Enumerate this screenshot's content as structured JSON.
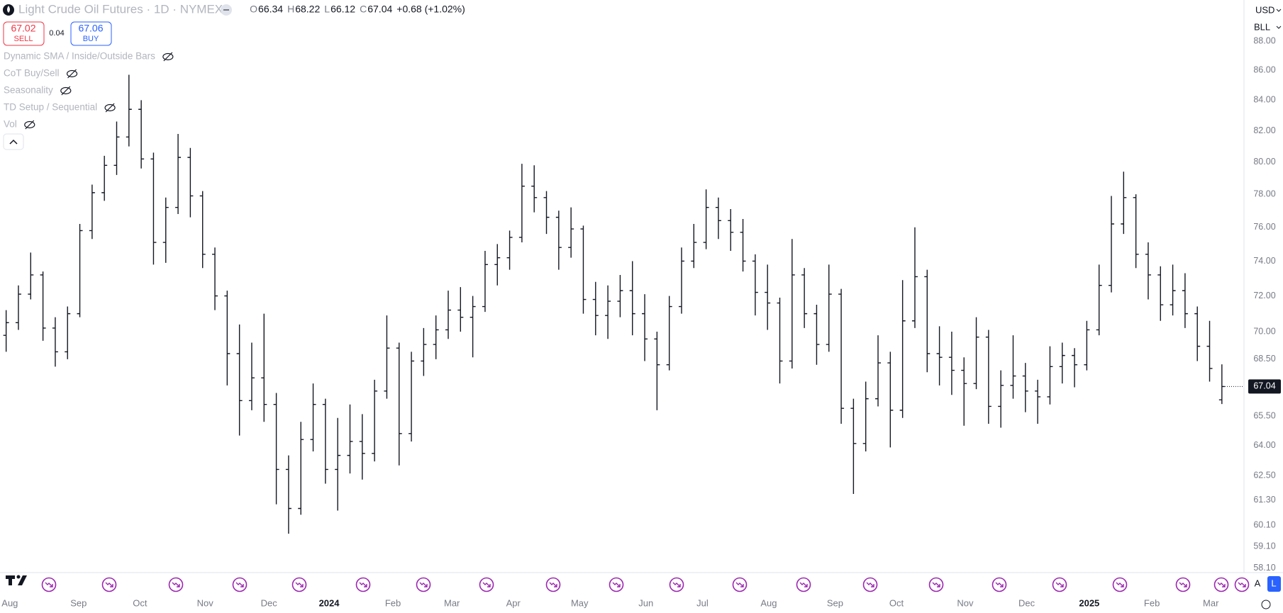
{
  "header": {
    "symbol": "Light Crude Oil Futures · 1D · NYMEX",
    "ohlc": [
      {
        "label": "O",
        "value": "66.34"
      },
      {
        "label": "H",
        "value": "68.22"
      },
      {
        "label": "L",
        "value": "66.12"
      },
      {
        "label": "C",
        "value": "67.04"
      }
    ],
    "change": "+0.68 (+1.02%)",
    "sell": {
      "price": "67.02",
      "label": "SELL"
    },
    "spread": "0.04",
    "buy": {
      "price": "67.06",
      "label": "BUY"
    }
  },
  "indicators": [
    "Dynamic SMA / Inside/Outside Bars",
    "CoT Buy/Sell",
    "Seasonality",
    "TD Setup / Sequential",
    "Vol"
  ],
  "price_axis": {
    "currency": "USD",
    "unit": "BLL"
  },
  "scale_modes": [
    "A",
    "L"
  ],
  "chart_data": {
    "type": "ohlc",
    "log_scale": true,
    "grid": false,
    "color": "#131722",
    "last_price": {
      "value": 67.04,
      "label": "67.04"
    },
    "xlim": [
      -0.5,
      100.8
    ],
    "ylim": [
      57.9,
      90.9
    ],
    "yticks": [
      {
        "value": 58.1,
        "label": "58.10"
      },
      {
        "value": 59.1,
        "label": "59.10"
      },
      {
        "value": 60.1,
        "label": "60.10"
      },
      {
        "value": 61.3,
        "label": "61.30"
      },
      {
        "value": 62.5,
        "label": "62.50"
      },
      {
        "value": 64,
        "label": "64.00"
      },
      {
        "value": 65.5,
        "label": "65.50"
      },
      {
        "value": 68.5,
        "label": "68.50"
      },
      {
        "value": 70,
        "label": "70.00"
      },
      {
        "value": 72,
        "label": "72.00"
      },
      {
        "value": 74,
        "label": "74.00"
      },
      {
        "value": 76,
        "label": "76.00"
      },
      {
        "value": 78,
        "label": "78.00"
      },
      {
        "value": 80,
        "label": "80.00"
      },
      {
        "value": 82,
        "label": "82.00"
      },
      {
        "value": 84,
        "label": "84.00"
      },
      {
        "value": 86,
        "label": "86.00"
      },
      {
        "value": 88,
        "label": "88.00"
      }
    ],
    "xticks": [
      {
        "value": 0.3,
        "label": "Aug"
      },
      {
        "value": 5.9,
        "label": "Sep"
      },
      {
        "value": 10.9,
        "label": "Oct"
      },
      {
        "value": 16.2,
        "label": "Nov"
      },
      {
        "value": 21.4,
        "label": "Dec"
      },
      {
        "value": 26.3,
        "label": "2024"
      },
      {
        "value": 31.5,
        "label": "Feb"
      },
      {
        "value": 36.3,
        "label": "Mar"
      },
      {
        "value": 41.3,
        "label": "Apr"
      },
      {
        "value": 46.7,
        "label": "May"
      },
      {
        "value": 52.1,
        "label": "Jun"
      },
      {
        "value": 56.7,
        "label": "Jul"
      },
      {
        "value": 62.1,
        "label": "Aug"
      },
      {
        "value": 67.5,
        "label": "Sep"
      },
      {
        "value": 72.5,
        "label": "Oct"
      },
      {
        "value": 78.1,
        "label": "Nov"
      },
      {
        "value": 83.1,
        "label": "Dec"
      },
      {
        "value": 88.2,
        "label": "2025"
      },
      {
        "value": 93.3,
        "label": "Feb"
      },
      {
        "value": 98.1,
        "label": "Mar"
      }
    ],
    "x": [
      0,
      1,
      2,
      3,
      4,
      5,
      6,
      7,
      8,
      9,
      10,
      11,
      12,
      13,
      14,
      15,
      16,
      17,
      18,
      19,
      20,
      21,
      22,
      23,
      24,
      25,
      26,
      27,
      28,
      29,
      30,
      31,
      32,
      33,
      34,
      35,
      36,
      37,
      38,
      39,
      40,
      41,
      42,
      43,
      44,
      45,
      46,
      47,
      48,
      49,
      50,
      51,
      52,
      53,
      54,
      55,
      56,
      57,
      58,
      59,
      60,
      61,
      62,
      63,
      64,
      65,
      66,
      67,
      68,
      69,
      70,
      71,
      72,
      73,
      74,
      75,
      76,
      77,
      78,
      79,
      80,
      81,
      82,
      83,
      84,
      85,
      86,
      87,
      88,
      89,
      90,
      91,
      92,
      93,
      94,
      95,
      96,
      97,
      98,
      99
    ],
    "series": [
      {
        "values": [
          [
            69.8,
            71.2,
            68.9,
            70.5
          ],
          [
            70.5,
            72.6,
            70.1,
            72.1
          ],
          [
            72.1,
            74.5,
            71.8,
            73.2
          ],
          [
            73.2,
            73.4,
            69.5,
            70.2
          ],
          [
            70.2,
            70.8,
            68.1,
            68.9
          ],
          [
            68.9,
            71.4,
            68.5,
            71.0
          ],
          [
            71.0,
            76.2,
            70.8,
            75.8
          ],
          [
            75.8,
            78.6,
            75.3,
            78.1
          ],
          [
            78.1,
            80.4,
            77.6,
            79.8
          ],
          [
            79.8,
            82.6,
            79.2,
            81.6
          ],
          [
            81.6,
            85.7,
            81.0,
            83.4
          ],
          [
            83.4,
            84.0,
            79.6,
            80.2
          ],
          [
            80.2,
            80.6,
            73.8,
            75.1
          ],
          [
            75.1,
            77.8,
            73.9,
            77.2
          ],
          [
            77.2,
            81.8,
            76.8,
            80.3
          ],
          [
            80.3,
            80.9,
            76.6,
            77.9
          ],
          [
            77.9,
            78.2,
            73.6,
            74.4
          ],
          [
            74.4,
            74.8,
            71.2,
            72.0
          ],
          [
            72.0,
            72.3,
            67.1,
            68.8
          ],
          [
            68.8,
            70.4,
            64.5,
            66.3
          ],
          [
            66.3,
            69.4,
            65.8,
            67.5
          ],
          [
            67.5,
            71.0,
            65.2,
            66.1
          ],
          [
            66.1,
            66.7,
            61.1,
            62.8
          ],
          [
            62.8,
            63.5,
            59.7,
            60.9
          ],
          [
            60.9,
            65.2,
            60.6,
            64.3
          ],
          [
            64.3,
            67.2,
            63.7,
            66.1
          ],
          [
            66.1,
            66.4,
            62.1,
            62.8
          ],
          [
            62.8,
            65.4,
            60.8,
            63.5
          ],
          [
            63.5,
            66.1,
            62.6,
            64.2
          ],
          [
            64.2,
            65.6,
            62.3,
            63.6
          ],
          [
            63.6,
            67.4,
            63.2,
            66.8
          ],
          [
            66.8,
            70.9,
            66.4,
            69.1
          ],
          [
            69.1,
            69.4,
            63.0,
            64.6
          ],
          [
            64.6,
            68.9,
            64.2,
            68.4
          ],
          [
            68.4,
            70.2,
            67.6,
            69.3
          ],
          [
            69.3,
            70.9,
            68.5,
            70.1
          ],
          [
            70.1,
            72.3,
            69.6,
            71.2
          ],
          [
            71.2,
            72.5,
            70.0,
            70.8
          ],
          [
            70.8,
            72.0,
            68.6,
            71.4
          ],
          [
            71.4,
            74.6,
            71.1,
            73.8
          ],
          [
            73.8,
            75.0,
            72.6,
            74.2
          ],
          [
            74.2,
            75.8,
            73.5,
            75.4
          ],
          [
            75.4,
            79.9,
            75.1,
            78.5
          ],
          [
            78.5,
            79.8,
            76.9,
            77.8
          ],
          [
            77.8,
            78.2,
            75.6,
            76.6
          ],
          [
            76.6,
            77.0,
            73.5,
            74.8
          ],
          [
            74.8,
            77.2,
            74.2,
            75.9
          ],
          [
            75.9,
            76.1,
            71.0,
            71.8
          ],
          [
            71.8,
            72.8,
            69.8,
            70.9
          ],
          [
            70.9,
            72.6,
            69.6,
            71.7
          ],
          [
            71.7,
            73.2,
            70.8,
            72.3
          ],
          [
            72.3,
            74.0,
            69.8,
            71.0
          ],
          [
            71.0,
            72.1,
            68.4,
            69.6
          ],
          [
            69.6,
            70.0,
            65.8,
            68.2
          ],
          [
            68.2,
            72.0,
            67.9,
            71.4
          ],
          [
            71.4,
            74.8,
            71.0,
            74.0
          ],
          [
            74.0,
            76.2,
            73.6,
            75.1
          ],
          [
            75.1,
            78.3,
            74.7,
            77.2
          ],
          [
            77.2,
            77.8,
            75.3,
            76.4
          ],
          [
            76.4,
            77.1,
            74.6,
            75.7
          ],
          [
            75.7,
            76.5,
            73.4,
            74.0
          ],
          [
            74.0,
            74.4,
            70.9,
            72.2
          ],
          [
            72.2,
            73.8,
            70.1,
            71.6
          ],
          [
            71.6,
            71.9,
            67.2,
            68.4
          ],
          [
            68.4,
            75.3,
            68.0,
            73.2
          ],
          [
            73.2,
            73.6,
            70.2,
            71.0
          ],
          [
            71.0,
            71.5,
            68.2,
            69.3
          ],
          [
            69.3,
            73.8,
            68.9,
            72.1
          ],
          [
            72.1,
            72.4,
            65.1,
            65.9
          ],
          [
            65.9,
            66.4,
            61.6,
            64.1
          ],
          [
            64.1,
            67.3,
            63.7,
            66.4
          ],
          [
            66.4,
            69.8,
            66.0,
            68.3
          ],
          [
            68.3,
            68.9,
            63.9,
            65.8
          ],
          [
            65.8,
            72.9,
            65.4,
            70.6
          ],
          [
            70.6,
            76.0,
            70.2,
            73.1
          ],
          [
            73.1,
            73.5,
            67.8,
            68.8
          ],
          [
            68.8,
            70.3,
            67.1,
            68.6
          ],
          [
            68.6,
            70.0,
            66.6,
            67.9
          ],
          [
            67.9,
            68.6,
            65.0,
            67.2
          ],
          [
            67.2,
            70.8,
            66.9,
            69.7
          ],
          [
            69.7,
            70.1,
            65.1,
            66.0
          ],
          [
            66.0,
            67.9,
            64.9,
            67.1
          ],
          [
            67.1,
            69.8,
            66.4,
            67.6
          ],
          [
            67.6,
            68.3,
            65.7,
            66.8
          ],
          [
            66.8,
            67.4,
            65.1,
            66.5
          ],
          [
            66.5,
            69.2,
            66.1,
            68.1
          ],
          [
            68.1,
            69.4,
            67.2,
            68.7
          ],
          [
            68.7,
            69.1,
            67.0,
            68.2
          ],
          [
            68.2,
            70.6,
            67.9,
            70.1
          ],
          [
            70.1,
            73.8,
            69.8,
            72.6
          ],
          [
            72.6,
            77.9,
            72.2,
            76.2
          ],
          [
            76.2,
            79.4,
            75.6,
            77.8
          ],
          [
            77.8,
            78.0,
            73.6,
            74.4
          ],
          [
            74.4,
            75.1,
            71.8,
            73.2
          ],
          [
            73.2,
            73.7,
            70.6,
            71.5
          ],
          [
            71.5,
            73.8,
            70.9,
            72.3
          ],
          [
            72.3,
            73.3,
            70.2,
            71.0
          ],
          [
            71.0,
            71.4,
            68.4,
            69.2
          ],
          [
            69.2,
            70.6,
            67.3,
            68.0
          ],
          [
            66.34,
            68.22,
            66.12,
            67.04
          ]
        ]
      }
    ]
  }
}
